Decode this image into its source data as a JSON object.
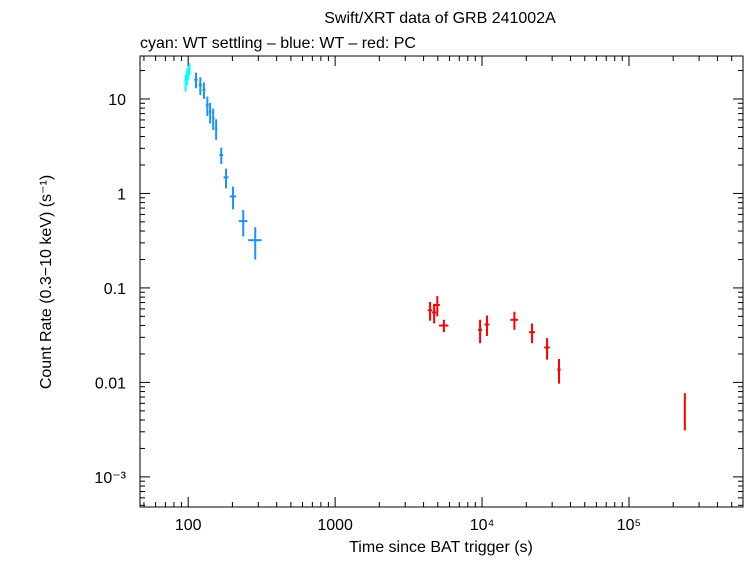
{
  "chart_data": {
    "type": "scatter",
    "title": "Swift/XRT data of GRB 241002A",
    "subtitle": "cyan: WT settling – blue: WT – red: PC",
    "x_label": "Time since BAT trigger (s)",
    "y_label": "Count Rate (0.3−10 keV) (s⁻¹)",
    "log_x": true,
    "log_y": true,
    "xlim": [
      47,
      597000
    ],
    "ylim": [
      0.00048,
      28.5
    ],
    "xticks": [
      100,
      1000,
      {
        "value": 10000,
        "label": "10⁴"
      },
      {
        "value": 100000,
        "label": "10⁵"
      }
    ],
    "yticks": [
      {
        "value": 0.001,
        "label": "10⁻³"
      },
      0.01,
      0.1,
      1,
      10
    ],
    "series": [
      {
        "name": "WT settling",
        "color": "#00ffff",
        "x": [
          96,
          98,
          100,
          102
        ],
        "values": [
          15,
          17,
          19,
          21
        ],
        "xerr": [
          1,
          1,
          1,
          1
        ],
        "yerr": [
          3,
          3,
          3,
          3
        ]
      },
      {
        "name": "WT",
        "color": "#1e90ff",
        "x": [
          113,
          121,
          128,
          135,
          141,
          148,
          155,
          168,
          181,
          202,
          237,
          286
        ],
        "values": [
          16,
          14,
          12.5,
          8.6,
          7.3,
          6.3,
          4.9,
          2.55,
          1.48,
          0.93,
          0.51,
          0.32
        ],
        "xerr": [
          3,
          3,
          3,
          3,
          3,
          3,
          3,
          5,
          7,
          10,
          16,
          30
        ],
        "yerr": [
          3,
          3,
          2.5,
          2,
          1.8,
          1.6,
          1.2,
          0.5,
          0.35,
          0.25,
          0.16,
          0.12
        ]
      },
      {
        "name": "PC",
        "color": "#ff0000",
        "x": [
          4430,
          4720,
          4960,
          5500,
          9700,
          10800,
          16600,
          21900,
          27700,
          33400,
          240000
        ],
        "values": [
          0.058,
          0.055,
          0.066,
          0.04,
          0.036,
          0.041,
          0.046,
          0.034,
          0.0234,
          0.0137,
          0.0054
        ],
        "xerr": [
          150,
          150,
          200,
          400,
          300,
          400,
          1000,
          1000,
          1200,
          900,
          0
        ],
        "yerr": [
          0.013,
          0.013,
          0.016,
          0.006,
          0.01,
          0.01,
          0.01,
          0.008,
          0.006,
          0.004,
          0.0023
        ]
      }
    ]
  }
}
